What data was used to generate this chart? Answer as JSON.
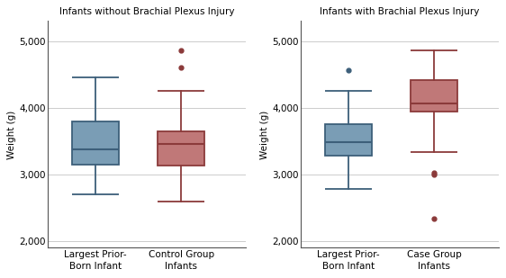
{
  "left_title": "Infants without Brachial Plexus Injury",
  "right_title": "Infants with Brachial Plexus Injury",
  "ylabel": "Weight (g)",
  "ylim": [
    1900,
    5300
  ],
  "yticks": [
    2000,
    3000,
    4000,
    5000
  ],
  "ytick_labels": [
    "2,000",
    "3,000",
    "4,000",
    "5,000"
  ],
  "blue_color": "#3d5f7a",
  "red_color": "#8b3a3a",
  "blue_fill": "#7a9db5",
  "red_fill": "#c07878",
  "left_blue": {
    "q1": 3150,
    "median": 3370,
    "q3": 3800,
    "whisker_low": 2700,
    "whisker_high": 4450,
    "outliers": []
  },
  "left_red": {
    "q1": 3130,
    "median": 3460,
    "q3": 3650,
    "whisker_low": 2600,
    "whisker_high": 4250,
    "outliers": [
      4600,
      4860
    ]
  },
  "right_blue": {
    "q1": 3280,
    "median": 3490,
    "q3": 3760,
    "whisker_low": 2780,
    "whisker_high": 4250,
    "outliers": [
      4560
    ]
  },
  "right_red": {
    "q1": 3940,
    "median": 4060,
    "q3": 4420,
    "whisker_low": 3340,
    "whisker_high": 4860,
    "outliers": [
      3000,
      3020,
      2340
    ]
  },
  "left_xlabels": [
    "Largest Prior-\nBorn Infant",
    "Control Group\nInfants"
  ],
  "right_xlabels": [
    "Largest Prior-\nBorn Infant",
    "Case Group\nInfants"
  ],
  "bg_color": "#ffffff",
  "grid_color": "#cccccc",
  "box_width": 0.55,
  "title_fontsize": 7.5,
  "label_fontsize": 7.5,
  "tick_fontsize": 7.5
}
